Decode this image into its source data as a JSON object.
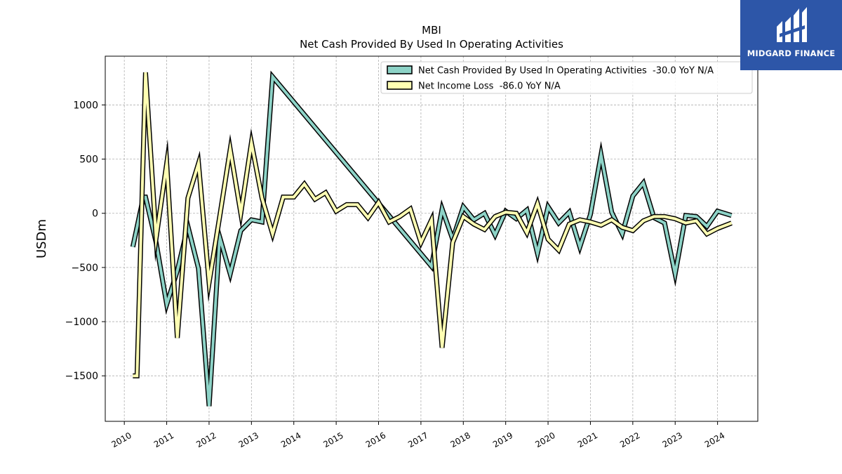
{
  "chart_data": {
    "type": "line",
    "title": "MBI",
    "subtitle": "Net Cash Provided By Used In Operating Activities",
    "ylabel": "USDm",
    "xlabel": "",
    "xlim": [
      2009.55,
      2024.95
    ],
    "ylim": [
      -1920,
      1450
    ],
    "yticks": [
      -1500,
      -1000,
      -500,
      0,
      500,
      1000
    ],
    "ytick_labels": [
      "−1500",
      "−1000",
      "−500",
      "0",
      "500",
      "1000"
    ],
    "xticks": [
      2010,
      2011,
      2012,
      2013,
      2014,
      2015,
      2016,
      2017,
      2018,
      2019,
      2020,
      2021,
      2022,
      2023,
      2024
    ],
    "xtick_labels": [
      "2010",
      "2011",
      "2012",
      "2013",
      "2014",
      "2015",
      "2016",
      "2017",
      "2018",
      "2019",
      "2020",
      "2021",
      "2022",
      "2023",
      "2024"
    ],
    "grid": true,
    "legend_position": "top-right",
    "series": [
      {
        "name": "Net Cash Provided By Used In Operating Activities  -30.0 YoY N/A",
        "color": "#8dd3c7",
        "x": [
          2010.2,
          2010.45,
          2010.5,
          2010.75,
          2011.0,
          2011.25,
          2011.5,
          2011.75,
          2012.0,
          2012.25,
          2012.5,
          2012.75,
          2013.0,
          2013.25,
          2013.5,
          2017.25,
          2017.5,
          2017.75,
          2018.0,
          2018.25,
          2018.5,
          2018.75,
          2019.0,
          2019.25,
          2019.5,
          2019.75,
          2020.0,
          2020.25,
          2020.5,
          2020.75,
          2021.0,
          2021.25,
          2021.5,
          2021.75,
          2022.0,
          2022.25,
          2022.5,
          2022.75,
          2023.0,
          2023.25,
          2023.5,
          2023.75,
          2024.0,
          2024.33
        ],
        "y": [
          -310,
          150,
          150,
          -270,
          -840,
          -530,
          -120,
          -510,
          -1780,
          -220,
          -560,
          -160,
          -60,
          -80,
          1260,
          -490,
          40,
          -240,
          60,
          -60,
          0,
          -200,
          20,
          -50,
          30,
          -370,
          60,
          -90,
          10,
          -310,
          -10,
          540,
          10,
          -190,
          160,
          280,
          -40,
          -90,
          -560,
          -20,
          -30,
          -120,
          20,
          -20
        ]
      },
      {
        "name": "Net Income Loss  -86.0 YoY N/A",
        "color": "#ffffb3",
        "x": [
          2010.2,
          2010.3,
          2010.5,
          2010.75,
          2011.0,
          2011.25,
          2011.5,
          2011.75,
          2012.0,
          2012.25,
          2012.5,
          2012.75,
          2013.0,
          2013.25,
          2013.5,
          2013.75,
          2014.0,
          2014.25,
          2014.5,
          2014.75,
          2015.0,
          2015.25,
          2015.5,
          2015.75,
          2016.0,
          2016.25,
          2016.5,
          2016.75,
          2017.0,
          2017.25,
          2017.5,
          2017.75,
          2018.0,
          2018.25,
          2018.5,
          2018.75,
          2019.0,
          2019.25,
          2019.5,
          2019.75,
          2020.0,
          2020.25,
          2020.5,
          2020.75,
          2021.0,
          2021.25,
          2021.5,
          2021.75,
          2022.0,
          2022.25,
          2022.5,
          2022.75,
          2023.0,
          2023.25,
          2023.5,
          2023.75,
          2024.0,
          2024.33
        ],
        "y": [
          -1500,
          -1500,
          1300,
          -230,
          460,
          -1150,
          140,
          460,
          -640,
          -30,
          590,
          0,
          650,
          140,
          -190,
          150,
          150,
          270,
          130,
          190,
          20,
          80,
          80,
          -40,
          100,
          -80,
          -30,
          40,
          -270,
          -60,
          -1240,
          -270,
          -30,
          -100,
          -150,
          -30,
          10,
          0,
          -180,
          90,
          -240,
          -340,
          -100,
          -60,
          -80,
          -110,
          -60,
          -130,
          -160,
          -70,
          -30,
          -30,
          -50,
          -90,
          -70,
          -190,
          -140,
          -90
        ]
      }
    ]
  },
  "logo": {
    "text": "MIDGARD FINANCE",
    "bg_color": "#2d56a8"
  }
}
